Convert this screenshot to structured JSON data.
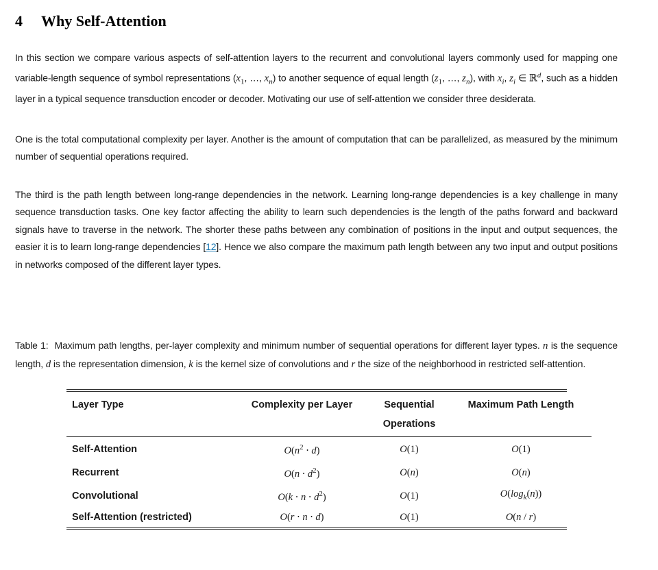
{
  "page": {
    "background": "#ffffff",
    "text_color": "#1a1a1a",
    "link_color": "#1878b4",
    "rule_color": "#2e2e2e"
  },
  "heading": {
    "number": "4",
    "title": "Why Self-Attention"
  },
  "paragraphs": [
    {
      "runs": [
        {
          "t": "In this section we compare various aspects of self-attention layers to the recurrent and convolutional layers commonly used for mapping one variable-length sequence of symbol representations ("
        },
        {
          "t": "x",
          "s": "m"
        },
        {
          "t": "1",
          "s": "sub"
        },
        {
          "t": ", …, "
        },
        {
          "t": "x",
          "s": "m"
        },
        {
          "t": "n",
          "s": "msub"
        },
        {
          "t": ") to another sequence of equal length ("
        },
        {
          "t": "z",
          "s": "m"
        },
        {
          "t": "1",
          "s": "sub"
        },
        {
          "t": ", …, "
        },
        {
          "t": "z",
          "s": "m"
        },
        {
          "t": "n",
          "s": "msub"
        },
        {
          "t": "), with "
        },
        {
          "t": "x",
          "s": "m"
        },
        {
          "t": "i",
          "s": "msub"
        },
        {
          "t": ", "
        },
        {
          "t": "z",
          "s": "m"
        },
        {
          "t": "i",
          "s": "msub"
        },
        {
          "t": " ∈ "
        },
        {
          "t": "ℝ",
          "s": "bb"
        },
        {
          "t": "d",
          "s": "msup"
        },
        {
          "t": ", such as a hidden layer in a typical sequence transduction encoder or decoder. Motivating our use of self-attention we consider three desiderata."
        }
      ]
    },
    {
      "runs": [
        {
          "t": "One is the total computational complexity per layer. Another is the amount of computation that can be parallelized, as measured by the minimum number of sequential operations required."
        }
      ]
    },
    {
      "runs": [
        {
          "t": "The third is the path length between long-range dependencies in the network. Learning long-range dependencies is a key challenge in many sequence transduction tasks. One key factor affecting the ability to learn such dependencies is the length of the paths forward and backward signals have to traverse in the network. The shorter these paths between any combination of positions in the input and output sequences, the easier it is to learn long-range dependencies ["
        },
        {
          "t": "12",
          "s": "a"
        },
        {
          "t": "]. Hence we also compare the maximum path length between any two input and output positions in networks composed of the different layer types."
        }
      ]
    }
  ],
  "table": {
    "caption": {
      "label": "Table 1:",
      "runs": [
        {
          "t": "Maximum path lengths, per-layer complexity and minimum number of sequential operations for different layer types. "
        },
        {
          "t": "n",
          "s": "m"
        },
        {
          "t": " is the sequence length, "
        },
        {
          "t": "d",
          "s": "m"
        },
        {
          "t": " is the representation dimension, "
        },
        {
          "t": "k",
          "s": "m"
        },
        {
          "t": " is the kernel size of convolutions and "
        },
        {
          "t": "r",
          "s": "m"
        },
        {
          "t": " the size of the neighborhood in restricted self-attention."
        }
      ]
    },
    "headers": [
      "Layer Type",
      "Complexity per Layer",
      "Sequential Operations",
      "Maximum Path Length"
    ],
    "rows": [
      {
        "label": "Self-Attention",
        "complexity": [
          {
            "t": "O",
            "s": "m"
          },
          {
            "t": "("
          },
          {
            "t": "n",
            "s": "m"
          },
          {
            "t": "2",
            "s": "sup"
          },
          {
            "t": " ⋅ "
          },
          {
            "t": "d",
            "s": "m"
          },
          {
            "t": ")"
          }
        ],
        "sequential": [
          {
            "t": "O",
            "s": "m"
          },
          {
            "t": "(1)"
          }
        ],
        "max_path": [
          {
            "t": "O",
            "s": "m"
          },
          {
            "t": "(1)"
          }
        ]
      },
      {
        "label": "Recurrent",
        "complexity": [
          {
            "t": "O",
            "s": "m"
          },
          {
            "t": "("
          },
          {
            "t": "n",
            "s": "m"
          },
          {
            "t": " ⋅ "
          },
          {
            "t": "d",
            "s": "m"
          },
          {
            "t": "2",
            "s": "sup"
          },
          {
            "t": ")"
          }
        ],
        "sequential": [
          {
            "t": "O",
            "s": "m"
          },
          {
            "t": "("
          },
          {
            "t": "n",
            "s": "m"
          },
          {
            "t": ")"
          }
        ],
        "max_path": [
          {
            "t": "O",
            "s": "m"
          },
          {
            "t": "("
          },
          {
            "t": "n",
            "s": "m"
          },
          {
            "t": ")"
          }
        ]
      },
      {
        "label": "Convolutional",
        "complexity": [
          {
            "t": "O",
            "s": "m"
          },
          {
            "t": "("
          },
          {
            "t": "k",
            "s": "m"
          },
          {
            "t": " ⋅ "
          },
          {
            "t": "n",
            "s": "m"
          },
          {
            "t": " ⋅ "
          },
          {
            "t": "d",
            "s": "m"
          },
          {
            "t": "2",
            "s": "sup"
          },
          {
            "t": ")"
          }
        ],
        "sequential": [
          {
            "t": "O",
            "s": "m"
          },
          {
            "t": "(1)"
          }
        ],
        "max_path": [
          {
            "t": "O",
            "s": "m"
          },
          {
            "t": "("
          },
          {
            "t": "log",
            "s": "m"
          },
          {
            "t": "k",
            "s": "msub"
          },
          {
            "t": "("
          },
          {
            "t": "n",
            "s": "m"
          },
          {
            "t": "))"
          }
        ]
      },
      {
        "label": "Self-Attention (restricted)",
        "complexity": [
          {
            "t": "O",
            "s": "m"
          },
          {
            "t": "("
          },
          {
            "t": "r",
            "s": "m"
          },
          {
            "t": " ⋅ "
          },
          {
            "t": "n",
            "s": "m"
          },
          {
            "t": " ⋅ "
          },
          {
            "t": "d",
            "s": "m"
          },
          {
            "t": ")"
          }
        ],
        "sequential": [
          {
            "t": "O",
            "s": "m"
          },
          {
            "t": "(1)"
          }
        ],
        "max_path": [
          {
            "t": "O",
            "s": "m"
          },
          {
            "t": "("
          },
          {
            "t": "n",
            "s": "m"
          },
          {
            "t": " / "
          },
          {
            "t": "r",
            "s": "m"
          },
          {
            "t": ")"
          }
        ]
      }
    ]
  }
}
